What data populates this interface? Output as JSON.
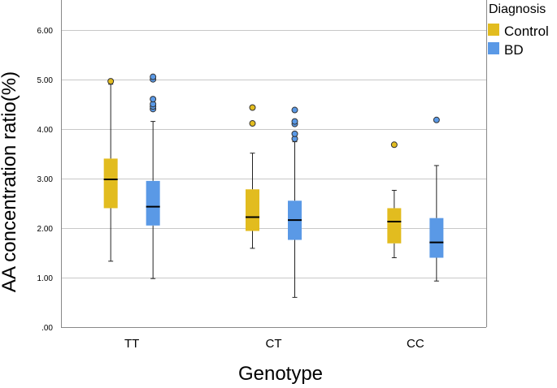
{
  "chart_data": {
    "type": "boxplot",
    "title": "",
    "xlabel": "Genotype",
    "ylabel": "AA concentration ratio(%)",
    "ylim": [
      0,
      6.6
    ],
    "yticks": [
      0,
      1,
      2,
      3,
      4,
      5,
      6
    ],
    "ytick_labels": [
      ".00",
      "1.00",
      "2.00",
      "3.00",
      "4.00",
      "5.00",
      "6.00"
    ],
    "grid": "horizontal",
    "categories": [
      "TT",
      "CT",
      "CC"
    ],
    "legend": {
      "title": "Diagnosis",
      "position": "top-right",
      "entries": [
        {
          "name": "Control",
          "color": "#E2BC1F"
        },
        {
          "name": "BD",
          "color": "#5A99E6"
        }
      ]
    },
    "series": [
      {
        "name": "Control",
        "color": "#E2BC1F",
        "boxes": [
          {
            "category": "TT",
            "whisker_low": 1.33,
            "q1": 2.4,
            "median": 2.98,
            "q3": 3.4,
            "whisker_high": 4.9,
            "outliers": [
              4.96
            ]
          },
          {
            "category": "CT",
            "whisker_low": 1.59,
            "q1": 1.94,
            "median": 2.22,
            "q3": 2.78,
            "whisker_high": 3.51,
            "outliers": [
              4.11,
              4.43
            ]
          },
          {
            "category": "CC",
            "whisker_low": 1.4,
            "q1": 1.69,
            "median": 2.13,
            "q3": 2.4,
            "whisker_high": 2.76,
            "outliers": [
              3.68
            ]
          }
        ]
      },
      {
        "name": "BD",
        "color": "#5A99E6",
        "boxes": [
          {
            "category": "TT",
            "whisker_low": 0.98,
            "q1": 2.05,
            "median": 2.43,
            "q3": 2.95,
            "whisker_high": 4.15,
            "outliers": [
              4.4,
              4.45,
              4.5,
              4.6,
              5.0,
              5.05
            ]
          },
          {
            "category": "CT",
            "whisker_low": 0.6,
            "q1": 1.76,
            "median": 2.16,
            "q3": 2.55,
            "whisker_high": 3.74,
            "outliers": [
              3.8,
              3.9,
              4.1,
              4.15,
              4.38
            ]
          },
          {
            "category": "CC",
            "whisker_low": 0.93,
            "q1": 1.4,
            "median": 1.71,
            "q3": 2.2,
            "whisker_high": 3.26,
            "outliers": [
              4.18
            ]
          }
        ]
      }
    ]
  }
}
